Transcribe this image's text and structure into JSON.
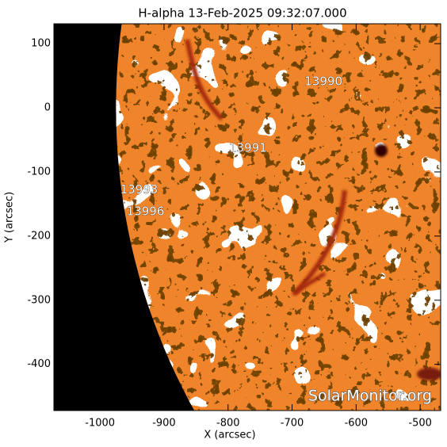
{
  "chart_data": {
    "type": "image",
    "title": "H-alpha 13-Feb-2025 09:32:07.000",
    "x_label": "X (arcsec)",
    "y_label": "Y (arcsec)",
    "xlim": [
      -1072,
      -468
    ],
    "ylim": [
      -472,
      131
    ],
    "xticks": [
      -1000,
      -900,
      -800,
      -700,
      -600,
      -500
    ],
    "yticks": [
      -400,
      -300,
      -200,
      -100,
      0,
      100
    ],
    "annotations": [
      {
        "label": "13990",
        "x": -651,
        "y": 41
      },
      {
        "label": "13991",
        "x": -769,
        "y": -63
      },
      {
        "label": "13993",
        "x": -939,
        "y": -128
      },
      {
        "label": "13996",
        "x": -929,
        "y": -162
      }
    ],
    "watermark": "SolarMonitor.org"
  }
}
